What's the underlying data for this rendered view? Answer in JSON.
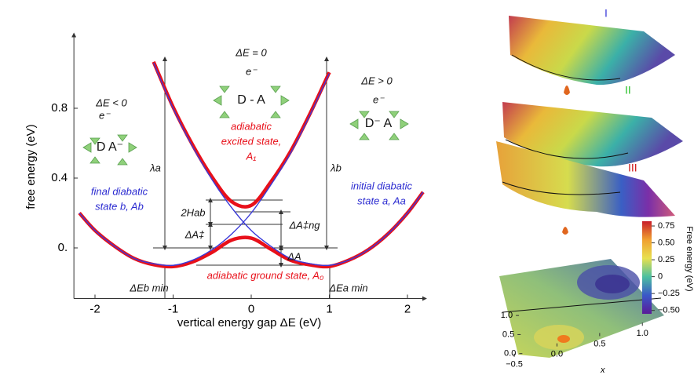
{
  "chart_data": [
    {
      "type": "line",
      "xlabel": "vertical energy gap ΔE (eV)",
      "ylabel": "free energy (eV)",
      "x": [
        -2.2,
        -2,
        -1.75,
        -1.5,
        -1.25,
        -1,
        -0.75,
        -0.5,
        -0.25,
        0,
        0.25,
        0.5,
        0.75,
        1,
        1.25,
        1.5,
        1.75,
        2,
        2.2
      ],
      "series": [
        {
          "color": "#e8101a",
          "width": 4.5,
          "values": [
            0.2,
            0.1,
            0.01,
            -0.06,
            -0.096,
            -0.107,
            -0.08,
            -0.025,
            0.045,
            0.056,
            -0.007,
            -0.07,
            -0.097,
            -0.106,
            -0.07,
            -0.01,
            0.08,
            0.2,
            0.32
          ]
        },
        {
          "color": "#e8101a",
          "width": 4.5,
          "values": [
            null,
            null,
            null,
            null,
            1.066,
            0.807,
            0.59,
            0.405,
            0.265,
            0.244,
            0.377,
            0.55,
            0.767,
            1.006,
            null,
            null,
            null,
            null,
            null
          ]
        },
        {
          "color": "#3a3ad8",
          "width": 1.4,
          "values": [
            0.2,
            0.1,
            0.01,
            -0.06,
            -0.09,
            -0.1,
            -0.07,
            -0.01,
            0.08,
            0.2,
            0.36,
            0.54,
            0.76,
            1.0,
            null,
            null,
            null,
            null,
            null
          ]
        },
        {
          "color": "#3a3ad8",
          "width": 1.4,
          "values": [
            null,
            null,
            null,
            null,
            1.06,
            0.8,
            0.58,
            0.39,
            0.23,
            0.1,
            0.01,
            -0.06,
            -0.09,
            -0.1,
            -0.07,
            -0.01,
            0.08,
            0.2,
            0.32
          ]
        }
      ],
      "xlim": [
        -2.27,
        2.22
      ],
      "ylim": [
        -0.29,
        1.22
      ],
      "xticks": [
        -2,
        -1,
        0,
        1,
        2
      ],
      "yticks": [
        {
          "value": 0,
          "label": "0."
        },
        0.4,
        0.8
      ],
      "annotations": [
        "ΔE = 0",
        "ΔE < 0",
        "ΔE > 0",
        "e⁻",
        "e⁻",
        "e⁻",
        "D - A",
        "D  A⁻",
        "D⁻  A",
        "adiabatic",
        "excited state,",
        "A₁",
        "final diabatic",
        "state b, Ab",
        "initial diabatic",
        "state a, Aa",
        "λa",
        "λb",
        "2Hab",
        "ΔA‡",
        "ΔA‡ng",
        "ΔA",
        "adiabatic ground state, A₀",
        "ΔEb min",
        "ΔEa min"
      ]
    },
    {
      "type": "contour",
      "panel_labels": [
        "I",
        "II",
        "III"
      ],
      "colorbar_label": "Free energy (eV)",
      "clim": [
        -0.55,
        0.82
      ],
      "cticks": [
        0.75,
        {
          "value": 0.5,
          "label": "0.50"
        },
        0.25,
        0,
        {
          "value": -0.25,
          "label": "−0.25"
        },
        {
          "value": -0.5,
          "label": "−0.50"
        }
      ],
      "xlabel": "x",
      "xlim": [
        -0.62,
        1.2
      ],
      "ylim": [
        -0.15,
        1.25
      ],
      "xticks": [
        {
          "value": -0.5,
          "label": "−0.5"
        },
        {
          "value": 0,
          "label": "0.0"
        },
        0.5,
        {
          "value": 1,
          "label": "1.0"
        }
      ],
      "yticks": [
        {
          "value": 0,
          "label": "0.0"
        },
        0.5,
        {
          "value": 1,
          "label": "1.0"
        }
      ]
    }
  ]
}
